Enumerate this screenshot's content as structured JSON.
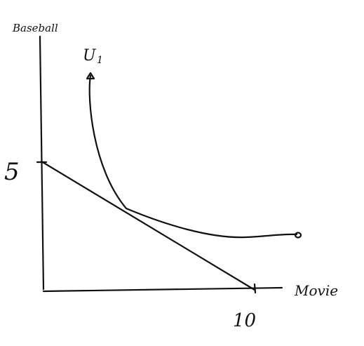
{
  "labels": {
    "y_axis": "Baseball",
    "x_axis": "Movie",
    "curve": "U",
    "curve_subscript": "1",
    "y_intercept": "5",
    "x_intercept": "10"
  },
  "colors": {
    "ink": "#111111",
    "background": "#ffffff"
  }
}
